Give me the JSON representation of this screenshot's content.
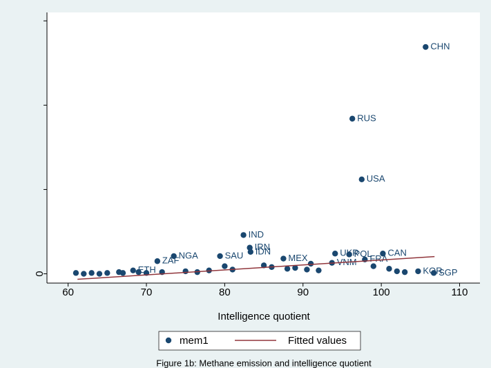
{
  "chart_data": {
    "type": "scatter",
    "xlabel": "Intelligence quotient",
    "caption": "Figure 1b: Methane emission and intelligence quotient",
    "xlim": [
      57.3,
      112.6
    ],
    "ylim": [
      -0.11,
      3.1
    ],
    "xticks": [
      60,
      70,
      80,
      90,
      100,
      110
    ],
    "yticks": [
      0,
      {
        "value": 1,
        "label": null
      },
      {
        "value": 2,
        "label": null
      },
      {
        "value": 3,
        "label": null
      }
    ],
    "series": [
      {
        "name": "mem1",
        "type": "scatter",
        "color": "#1a476f",
        "x": [
          105.66,
          96.3,
          97.5,
          82.4,
          83.2,
          83.3,
          73.5,
          79.4,
          87.5,
          94.1,
          95.9,
          100.2,
          97.9,
          71.4,
          93.7,
          68.3,
          104.7,
          106.7,
          61,
          62,
          63,
          64,
          65,
          66.5,
          67,
          69,
          70,
          72,
          75,
          76.5,
          78,
          80,
          81,
          85,
          86,
          88,
          89,
          90.5,
          91,
          92,
          99,
          101,
          102,
          103
        ],
        "values": [
          2.69,
          1.84,
          1.12,
          0.46,
          0.31,
          0.26,
          0.21,
          0.21,
          0.18,
          0.24,
          0.23,
          0.24,
          0.17,
          0.15,
          0.13,
          0.04,
          0.03,
          0.01,
          0.01,
          0.0,
          0.01,
          0.0,
          0.01,
          0.02,
          0.01,
          0.02,
          0.01,
          0.02,
          0.03,
          0.02,
          0.04,
          0.09,
          0.05,
          0.1,
          0.08,
          0.06,
          0.07,
          0.05,
          0.12,
          0.04,
          0.09,
          0.06,
          0.03,
          0.02
        ],
        "labels": [
          "CHN",
          "RUS",
          "USA",
          "IND",
          "IRN",
          "IDN",
          "NGA",
          "SAU",
          "MEX",
          "UKR",
          "POL",
          "CAN",
          "FRA",
          "ZAF",
          "VNM",
          "ETH",
          "KOR",
          "SGP",
          null,
          null,
          null,
          null,
          null,
          null,
          null,
          null,
          null,
          null,
          null,
          null,
          null,
          null,
          null,
          null,
          null,
          null,
          null,
          null,
          null,
          null,
          null,
          null,
          null,
          null
        ]
      },
      {
        "name": "Fitted values",
        "type": "line",
        "color": "#90353b",
        "x": [
          61.2,
          106.8
        ],
        "values": [
          -0.065,
          0.204
        ]
      }
    ]
  }
}
